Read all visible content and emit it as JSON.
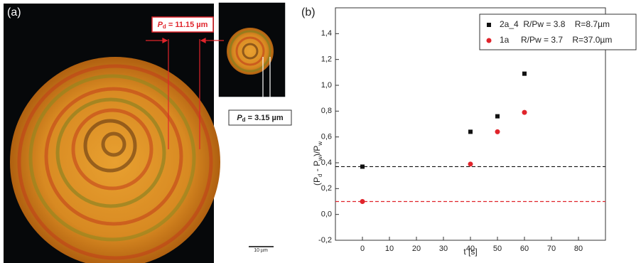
{
  "panel_labels": [
    "(a)",
    "(b)"
  ],
  "micrograph": {
    "large_period": {
      "symbol": "P",
      "subscript": "d",
      "text": " = 11.15 µm"
    },
    "small_period": {
      "symbol": "P",
      "subscript": "d",
      "text": " = 3.15 µm"
    },
    "scale_bar": "10 µm"
  },
  "chart_data": {
    "type": "scatter",
    "xlabel": "t [s]",
    "ylabel_parts": [
      "(P",
      "d",
      " - P",
      "w",
      ")/P",
      "w"
    ],
    "xlim": [
      -10,
      90
    ],
    "xticks": [
      0,
      10,
      20,
      30,
      40,
      50,
      60,
      70,
      80
    ],
    "ylim": [
      -0.2,
      1.6
    ],
    "yticks": [
      {
        "value": -0.2,
        "label": "-0,2"
      },
      {
        "value": 0,
        "label": "0,0"
      },
      {
        "value": 0.2,
        "label": "0,2"
      },
      {
        "value": 0.4,
        "label": "0,4"
      },
      {
        "value": 0.6,
        "label": "0,6"
      },
      {
        "value": 0.8,
        "label": "0,8"
      },
      {
        "value": 1.0,
        "label": "1,0"
      },
      {
        "value": 1.2,
        "label": "1,2"
      },
      {
        "value": 1.4,
        "label": "1,4"
      }
    ],
    "series": [
      {
        "name": "2a_4  R/Pw = 3.8    R=8.7µm",
        "color": "#111111",
        "marker": "square",
        "x": [
          0,
          40,
          50,
          60
        ],
        "values": [
          0.37,
          0.64,
          0.76,
          1.09
        ]
      },
      {
        "name": "1a     R/Pw = 3.7    R=37.0µm",
        "color": "#e0242b",
        "marker": "circle",
        "x": [
          0,
          40,
          50,
          60
        ],
        "values": [
          0.1,
          0.39,
          0.64,
          0.79
        ]
      }
    ],
    "reference_lines": [
      {
        "value": 0.37,
        "color": "#111111"
      },
      {
        "value": 0.1,
        "color": "#e0242b"
      }
    ],
    "legend": "upper right"
  }
}
